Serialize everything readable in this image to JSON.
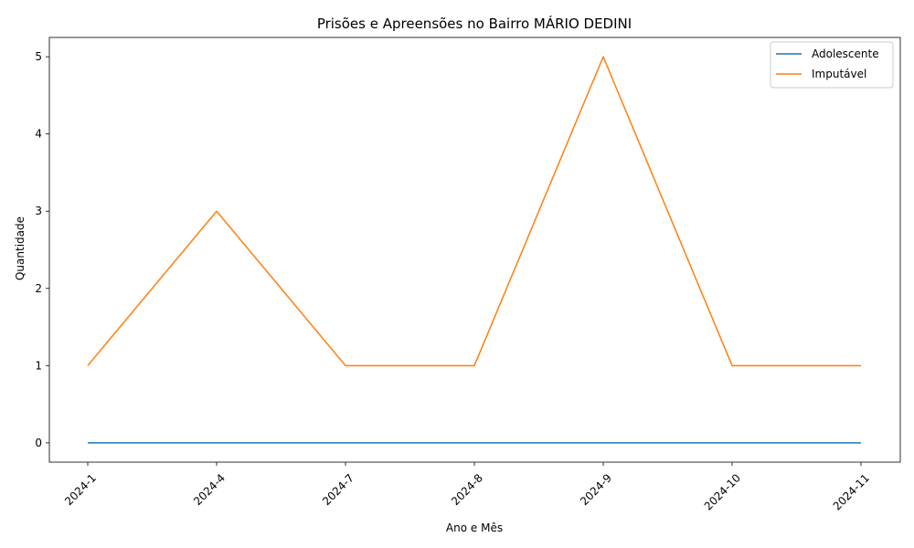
{
  "chart_data": {
    "type": "line",
    "title": "Prisões e Apreensões no Bairro MÁRIO DEDINI",
    "xlabel": "Ano e Mês",
    "ylabel": "Quantidade",
    "categories": [
      "2024-1",
      "2024-4",
      "2024-7",
      "2024-8",
      "2024-9",
      "2024-10",
      "2024-11"
    ],
    "yticks": [
      0,
      1,
      2,
      3,
      4,
      5
    ],
    "ylim": [
      -0.25,
      5.25
    ],
    "grid": false,
    "legend_position": "top-right",
    "series": [
      {
        "name": "Adolescente",
        "color": "#1f77b4",
        "values": [
          0,
          0,
          0,
          0,
          0,
          0,
          0
        ]
      },
      {
        "name": "Imputável",
        "color": "#ff7f0e",
        "values": [
          1,
          3,
          1,
          1,
          5,
          1,
          1
        ]
      }
    ]
  }
}
